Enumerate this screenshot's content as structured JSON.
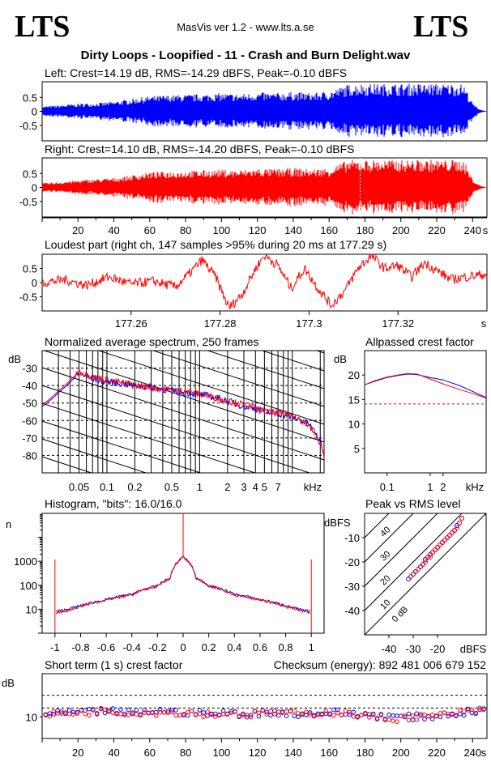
{
  "header": {
    "logo_left": "LTS",
    "logo_right": "LTS",
    "app_title": "MasVis ver 1.2 - www.lts.a.se",
    "file_title": "Dirty Loops - Loopified - 11 - Crash and Burn Delight.wav",
    "checksum": "Checksum (energy):   892 481 006 679 152"
  },
  "colors": {
    "left": "#0000ff",
    "right": "#ff0000",
    "grid": "#000000"
  },
  "chart_data": [
    {
      "id": "left_waveform",
      "type": "area",
      "title": "Left: Crest=14.19 dB, RMS=-14.29 dBFS, Peak=-0.10 dBFS",
      "series": [
        {
          "name": "Left",
          "x": [
            0,
            10,
            20,
            30,
            40,
            50,
            60,
            70,
            80,
            90,
            100,
            110,
            120,
            130,
            140,
            150,
            160,
            170,
            175,
            180,
            190,
            200,
            210,
            220,
            230,
            235,
            240,
            243,
            245,
            248
          ],
          "values": [
            0.18,
            0.22,
            0.28,
            0.3,
            0.35,
            0.45,
            0.55,
            0.58,
            0.6,
            0.62,
            0.65,
            0.62,
            0.68,
            0.66,
            0.7,
            0.66,
            0.72,
            0.95,
            0.99,
            0.99,
            0.99,
            0.99,
            0.99,
            0.99,
            0.99,
            0.98,
            0.3,
            0.12,
            0.05,
            0.0
          ]
        }
      ],
      "ylim": [
        -1,
        1
      ],
      "yticks": [
        "0.5",
        "0",
        "-0.5"
      ]
    },
    {
      "id": "right_waveform",
      "type": "area",
      "title": "Right: Crest=14.10 dB, RMS=-14.20 dBFS, Peak=-0.10 dBFS",
      "series": [
        {
          "name": "Right",
          "x": [
            0,
            10,
            20,
            30,
            40,
            50,
            60,
            70,
            80,
            90,
            100,
            110,
            120,
            130,
            140,
            150,
            160,
            170,
            175,
            180,
            190,
            200,
            210,
            220,
            230,
            235,
            240,
            243,
            245,
            248
          ],
          "values": [
            0.15,
            0.2,
            0.26,
            0.3,
            0.34,
            0.44,
            0.55,
            0.58,
            0.6,
            0.62,
            0.64,
            0.62,
            0.68,
            0.66,
            0.7,
            0.66,
            0.7,
            0.97,
            0.99,
            0.99,
            0.99,
            0.99,
            0.99,
            0.99,
            0.99,
            0.98,
            0.3,
            0.12,
            0.05,
            0.0
          ]
        }
      ],
      "ylim": [
        -1,
        1
      ],
      "yticks": [
        "0.5",
        "0",
        "-0.5"
      ],
      "xlabel": "s",
      "xticks": [
        "20",
        "40",
        "60",
        "80",
        "100",
        "120",
        "140",
        "160",
        "180",
        "200",
        "220",
        "240"
      ],
      "marker_x": 177.29
    },
    {
      "id": "loudest_part",
      "type": "line",
      "title": "Loudest part (right ch, 147 samples >95% during 20 ms at 177.29 s)",
      "series": [
        {
          "name": "Right",
          "x": [
            177.24,
            177.245,
            177.25,
            177.255,
            177.26,
            177.265,
            177.27,
            177.273,
            177.276,
            177.279,
            177.282,
            177.285,
            177.288,
            177.29,
            177.293,
            177.296,
            177.299,
            177.302,
            177.305,
            177.308,
            177.311,
            177.314,
            177.317,
            177.32,
            177.323,
            177.326,
            177.329,
            177.332,
            177.335,
            177.34
          ],
          "values": [
            0.0,
            0.1,
            -0.1,
            0.2,
            -0.05,
            0.05,
            -0.15,
            0.3,
            0.8,
            0.2,
            -0.9,
            -0.4,
            0.5,
            0.97,
            0.6,
            -0.2,
            0.5,
            -0.2,
            -0.8,
            -0.3,
            0.5,
            0.95,
            0.5,
            0.6,
            0.2,
            0.7,
            0.4,
            0.1,
            0.2,
            0.3
          ]
        }
      ],
      "ylim": [
        -1,
        1
      ],
      "yticks": [
        "0.5",
        "0",
        "-0.5"
      ],
      "xticks": [
        "177.26",
        "177.28",
        "177.3",
        "177.32"
      ],
      "xlabel": "s"
    },
    {
      "id": "spectrum",
      "type": "line",
      "title": "Normalized average spectrum, 250 frames",
      "ylabel": "dB",
      "xlabel": "kHz",
      "xscale": "log",
      "xlim": [
        0.02,
        22
      ],
      "ylim": [
        -90,
        -20
      ],
      "yticks": [
        "-30",
        "-40",
        "-50",
        "-60",
        "-70",
        "-80"
      ],
      "xticks": [
        "0.05",
        "0.1",
        "0.2",
        "0.5",
        "1",
        "2",
        "3",
        "4",
        "5",
        "7"
      ],
      "series": [
        {
          "name": "Left",
          "x": [
            0.02,
            0.03,
            0.04,
            0.05,
            0.07,
            0.1,
            0.2,
            0.3,
            0.5,
            0.7,
            1,
            2,
            3,
            4,
            5,
            7,
            10,
            15,
            20,
            22
          ],
          "values": [
            -52,
            -44,
            -38,
            -33,
            -36,
            -38,
            -40,
            -41,
            -43,
            -44,
            -45,
            -49,
            -52,
            -53,
            -55,
            -56,
            -58,
            -62,
            -72,
            -80
          ]
        },
        {
          "name": "Right",
          "x": [
            0.02,
            0.03,
            0.04,
            0.05,
            0.07,
            0.1,
            0.2,
            0.3,
            0.5,
            0.7,
            1,
            2,
            3,
            4,
            5,
            7,
            10,
            15,
            20,
            22
          ],
          "values": [
            -51,
            -43,
            -37,
            -32,
            -35,
            -37,
            -40,
            -41,
            -43,
            -43,
            -45,
            -49,
            -51,
            -53,
            -55,
            -56,
            -57,
            -63,
            -73,
            -81
          ]
        }
      ]
    },
    {
      "id": "allpassed_crest",
      "type": "line",
      "title": "Allpassed crest factor",
      "ylabel": "dB",
      "xlabel": "kHz",
      "xscale": "log",
      "xlim": [
        0.03,
        20
      ],
      "ylim": [
        0,
        25
      ],
      "yticks": [
        "20",
        "15",
        "10",
        "5"
      ],
      "xticks": [
        "0.1",
        "1",
        "2"
      ],
      "reference_line": 14.1,
      "series": [
        {
          "name": "Left",
          "x": [
            0.03,
            0.05,
            0.1,
            0.2,
            0.3,
            0.5,
            1,
            2,
            5,
            10,
            20
          ],
          "values": [
            18,
            18.7,
            19.5,
            20,
            20.2,
            20.1,
            19.5,
            19,
            17.8,
            16.6,
            15.4
          ]
        },
        {
          "name": "Right",
          "x": [
            0.03,
            0.05,
            0.1,
            0.2,
            0.3,
            0.5,
            1,
            2,
            5,
            10,
            20
          ],
          "values": [
            18,
            18.8,
            19.6,
            20.1,
            20.3,
            20.2,
            19.2,
            18.2,
            17,
            16.2,
            15.3
          ]
        }
      ]
    },
    {
      "id": "histogram",
      "type": "line",
      "title": "Histogram, \"bits\": 16.0/16.0",
      "ylabel": "n",
      "yscale": "log",
      "xlim": [
        -1.1,
        1.1
      ],
      "ylim": [
        1,
        100000
      ],
      "yticks": [
        "1000",
        "100",
        "10"
      ],
      "xticks": [
        "-1",
        "-0.8",
        "-0.6",
        "-0.4",
        "-0.2",
        "0",
        "0.2",
        "0.4",
        "0.6",
        "0.8",
        "1"
      ],
      "series": [
        {
          "name": "Left",
          "x": [
            -1,
            -0.99,
            -0.9,
            -0.8,
            -0.6,
            -0.4,
            -0.2,
            -0.1,
            0,
            0.1,
            0.2,
            0.4,
            0.6,
            0.8,
            0.9,
            0.99,
            1
          ],
          "values": [
            1200,
            8,
            10,
            14,
            25,
            42,
            95,
            200,
            1500,
            200,
            95,
            42,
            25,
            14,
            10,
            8,
            1200
          ]
        },
        {
          "name": "Right",
          "x": [
            -1,
            -0.99,
            -0.9,
            -0.8,
            -0.6,
            -0.4,
            -0.2,
            -0.1,
            0,
            0.1,
            0.2,
            0.4,
            0.6,
            0.8,
            0.9,
            0.99,
            1
          ],
          "values": [
            1200,
            7,
            9,
            13,
            24,
            40,
            92,
            195,
            1500,
            195,
            92,
            40,
            24,
            13,
            9,
            7,
            1200
          ]
        }
      ]
    },
    {
      "id": "peak_vs_rms",
      "type": "scatter",
      "title": "Peak vs RMS level",
      "ylabel": "dBFS",
      "xlabel": "dBFS",
      "xlim": [
        -50,
        0
      ],
      "ylim": [
        -50,
        0
      ],
      "yticks": [
        "-10",
        "-20",
        "-30",
        "-40"
      ],
      "xticks": [
        "-40",
        "-30",
        "-20"
      ],
      "crest_lines": [
        "40",
        "30",
        "20",
        "10",
        "0 dB"
      ],
      "series": [
        {
          "name": "Left",
          "x": [
            -32,
            -30,
            -29,
            -27,
            -26,
            -25,
            -24,
            -23,
            -22,
            -21,
            -20,
            -19,
            -18,
            -17,
            -16,
            -15,
            -14,
            -13,
            -12,
            -11,
            -10
          ],
          "values": [
            -27,
            -25,
            -24,
            -22,
            -21,
            -19,
            -18,
            -17,
            -16,
            -15,
            -14,
            -13,
            -12,
            -11,
            -10,
            -9,
            -8,
            -7,
            -5,
            -4,
            -2
          ]
        },
        {
          "name": "Right",
          "x": [
            -31,
            -29,
            -28,
            -26,
            -25,
            -24,
            -23,
            -22,
            -21,
            -20,
            -19,
            -18,
            -17,
            -16,
            -15,
            -14,
            -13,
            -12,
            -11,
            -10
          ],
          "values": [
            -26,
            -24,
            -23,
            -21,
            -20,
            -18,
            -18,
            -16,
            -15,
            -14,
            -13,
            -12,
            -11,
            -10,
            -9,
            -8,
            -7,
            -6,
            -4,
            -2
          ]
        }
      ]
    },
    {
      "id": "short_term_crest",
      "type": "scatter",
      "title": "Short term (1 s) crest factor",
      "ylabel": "dB",
      "xlabel": "s",
      "xlim": [
        0,
        248
      ],
      "ylim": [
        0,
        30
      ],
      "yticks": [
        "10"
      ],
      "xticks": [
        "20",
        "40",
        "60",
        "80",
        "100",
        "120",
        "140",
        "160",
        "180",
        "200",
        "220",
        "240"
      ],
      "reference_lines": [
        14.1,
        20
      ],
      "series": [
        {
          "name": "Left",
          "x": [
            5,
            15,
            25,
            35,
            45,
            55,
            65,
            75,
            85,
            95,
            105,
            115,
            125,
            135,
            145,
            155,
            165,
            175,
            185,
            195,
            205,
            215,
            225,
            235,
            245
          ],
          "values": [
            11,
            12,
            12,
            13,
            12,
            12,
            13,
            12,
            12,
            11,
            12,
            11,
            12,
            12,
            11,
            12,
            12,
            11,
            11,
            10,
            10,
            10,
            11,
            12,
            13
          ]
        },
        {
          "name": "Right",
          "x": [
            5,
            15,
            25,
            35,
            45,
            55,
            65,
            75,
            85,
            95,
            105,
            115,
            125,
            135,
            145,
            155,
            165,
            175,
            185,
            195,
            205,
            215,
            225,
            235,
            245
          ],
          "values": [
            11,
            12,
            12,
            13,
            12,
            12,
            12,
            12,
            12,
            11,
            12,
            11,
            12,
            12,
            11,
            12,
            12,
            11,
            10,
            9,
            10,
            10,
            11,
            12,
            13
          ]
        }
      ]
    }
  ]
}
